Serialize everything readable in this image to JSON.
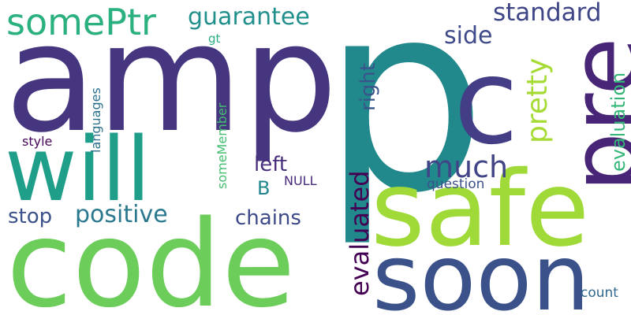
{
  "words": [
    {
      "text": "p",
      "color": "#21898C"
    },
    {
      "text": "amp",
      "color": "#46367F"
    },
    {
      "text": "code",
      "color": "#6CCD5A"
    },
    {
      "text": "safe",
      "color": "#A0DA39"
    },
    {
      "text": "soon",
      "color": "#3B5189"
    },
    {
      "text": "will",
      "color": "#1F9E89"
    },
    {
      "text": "pre",
      "color": "#482576"
    },
    {
      "text": "c",
      "color": "#433E85"
    },
    {
      "text": "somePtr",
      "color": "#2BB07F"
    },
    {
      "text": "guarantee",
      "color": "#21908D"
    },
    {
      "text": "standard",
      "color": "#3F4688"
    },
    {
      "text": "side",
      "color": "#3E4A89"
    },
    {
      "text": "pretty",
      "color": "#A6DB35"
    },
    {
      "text": "right",
      "color": "#39558C"
    },
    {
      "text": "much",
      "color": "#414487"
    },
    {
      "text": "evaluation",
      "color": "#35B779"
    },
    {
      "text": "evaluated",
      "color": "#440154"
    },
    {
      "text": "positive",
      "color": "#2A788E"
    },
    {
      "text": "stop",
      "color": "#3B528B"
    },
    {
      "text": "chains",
      "color": "#3E4989"
    },
    {
      "text": "left",
      "color": "#472D7B"
    },
    {
      "text": "B",
      "color": "#23888E"
    },
    {
      "text": "NULL",
      "color": "#472A7A"
    },
    {
      "text": "question",
      "color": "#3B528B"
    },
    {
      "text": "someMember",
      "color": "#44BF70"
    },
    {
      "text": "languages",
      "color": "#2C718E"
    },
    {
      "text": "style",
      "color": "#450559"
    },
    {
      "text": "gt",
      "color": "#29AF7F"
    },
    {
      "text": "count",
      "color": "#31688E"
    }
  ]
}
